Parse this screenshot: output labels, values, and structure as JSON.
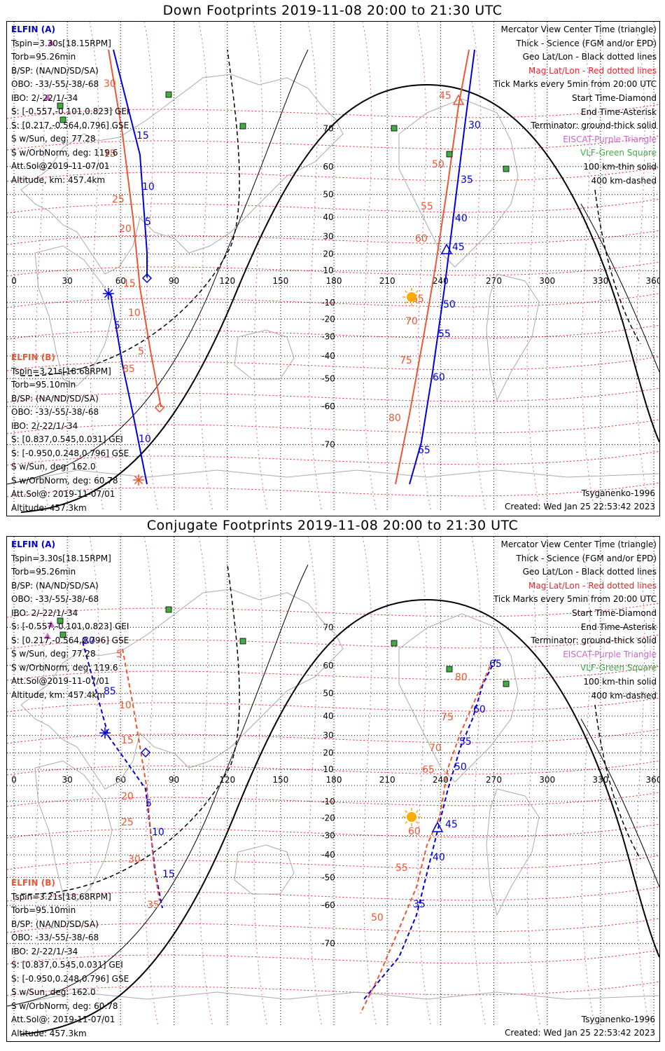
{
  "panels": [
    {
      "title": "Down Footprints 2019-11-08 20:00 to 21:30 UTC",
      "elfin_a": {
        "header": "ELFIN (A)",
        "lines": [
          "Tspin=3.30s[18.15RPM]",
          "Torb=95.26min",
          "B/SP: (NA/ND/SD/SA)",
          "OBO: -33/-55/-38/-68",
          "IBO: 2/-22/1/-34",
          "S: [-0.557,-0.101,0.823] GEI",
          "S: [0.217,-0.564,0.796] GSE",
          "S w/Sun, deg: 77.28",
          "S w/OrbNorm, deg: 119.6",
          "Att.Sol@2019-11-07/01",
          "Altitude, km: 457.4km"
        ]
      },
      "elfin_b": {
        "header": "ELFIN (B)",
        "lines": [
          "Tspin=3.21s[18.68RPM]",
          "Torb=95.10min",
          "B/SP: (NA/ND/SD/SA)",
          "OBO: -33/-55/-38/-68",
          "IBO: 2/-22/1/-34",
          "S: [0.837,0.545,0.031] GEI",
          "S: [-0.950,0.248,0.796] GSE",
          "S w/Sun, deg: 162.0",
          "S w/OrbNorm, deg: 60.78",
          "Att.Sol@: 2019-11-07/01",
          "Altitude: 457.3km"
        ]
      },
      "legend": [
        {
          "text": "Mercator View Center Time (triangle)",
          "color": "#000000"
        },
        {
          "text": "Thick - Science (FGM and/or EPD)",
          "color": "#000000"
        },
        {
          "text": "Geo Lat/Lon - Black dotted lines",
          "color": "#000000"
        },
        {
          "text": "Mag Lat/Lon - Red dotted lines",
          "color": "#ee2222"
        },
        {
          "text": "Tick Marks every 5min from 20:00 UTC",
          "color": "#000000"
        },
        {
          "text": "Start Time-Diamond",
          "color": "#000000"
        },
        {
          "text": "End Time-Asterisk",
          "color": "#000000"
        },
        {
          "text": "Terminator: ground-thick solid",
          "color": "#000000"
        },
        {
          "text": "EISCAT-Purple Triangle",
          "color": "#cc66cc"
        },
        {
          "text": "VLF-Green Square",
          "color": "#44aa44"
        },
        {
          "text": "100 km-thin solid",
          "color": "#000000"
        },
        {
          "text": "400 km-dashed",
          "color": "#000000"
        }
      ],
      "credit_model": "Tsyganenko-1996",
      "credit_created": "Created: Wed Jan 25 22:53:42 2023"
    },
    {
      "title": "Conjugate Footprints 2019-11-08 20:00 to 21:30 UTC",
      "elfin_a": {
        "header": "ELFIN (A)",
        "lines": [
          "Tspin=3.30s[18.15RPM]",
          "Torb=95.26min",
          "B/SP: (NA/ND/SD/SA)",
          "OBO: -33/-55/-38/-68",
          "IBO: 2/-22/1/-34",
          "S: [-0.557,-0.101,0.823] GEI",
          "S: [0.217,-0.564,0.796] GSE",
          "S w/Sun, deg: 77.28",
          "S w/OrbNorm, deg: 119.6",
          "Att.Sol@2019-11-07/01",
          "Altitude, km: 457.4km"
        ]
      },
      "elfin_b": {
        "header": "ELFIN (B)",
        "lines": [
          "Tspin=3.21s[18.68RPM]",
          "Torb=95.10min",
          "B/SP: (NA/ND/SD/SA)",
          "OBO: -33/-55/-38/-68",
          "IBO: 2/-22/1/-34",
          "S: [0.837,0.545,0.031] GEI",
          "S: [-0.950,0.248,0.796] GSE",
          "S w/Sun, deg: 162.0",
          "S w/OrbNorm, deg: 60.78",
          "Att.Sol@: 2019-11-07/01",
          "Altitude: 457.3km"
        ]
      },
      "legend": [
        {
          "text": "Mercator View Center Time (triangle)",
          "color": "#000000"
        },
        {
          "text": "Thick - Science (FGM and/or EPD)",
          "color": "#000000"
        },
        {
          "text": "Geo Lat/Lon - Black dotted lines",
          "color": "#000000"
        },
        {
          "text": "Mag Lat/Lon - Red dotted lines",
          "color": "#ee2222"
        },
        {
          "text": "Tick Marks every 5min from 20:00 UTC",
          "color": "#000000"
        },
        {
          "text": "Start Time-Diamond",
          "color": "#000000"
        },
        {
          "text": "End Time-Asterisk",
          "color": "#000000"
        },
        {
          "text": "Terminator: ground-thick solid",
          "color": "#000000"
        },
        {
          "text": "EISCAT-Purple Triangle",
          "color": "#cc66cc"
        },
        {
          "text": "VLF-Green Square",
          "color": "#44aa44"
        },
        {
          "text": "100 km-thin solid",
          "color": "#000000"
        },
        {
          "text": "400 km-dashed",
          "color": "#000000"
        }
      ],
      "credit_model": "Tsyganenko-1996",
      "credit_created": "Created: Wed Jan 25 22:53:42 2023"
    }
  ],
  "axes": {
    "lon_ticks": [
      "0",
      "30",
      "60",
      "90",
      "120",
      "150",
      "180",
      "210",
      "240",
      "270",
      "300",
      "330",
      "360"
    ],
    "lat_ticks": [
      "70",
      "60",
      "50",
      "40",
      "30",
      "20",
      "10",
      "-10",
      "-20",
      "-30",
      "-40",
      "-50",
      "-60",
      "-70"
    ]
  },
  "colors": {
    "elfin_a": "#0000dd",
    "elfin_b": "#ee5533",
    "geo_grid": "#000000",
    "mag_grid": "#ee2222",
    "coast": "#aaaaaa",
    "vlf": "#44aa44",
    "eiscat": "#cc66cc",
    "sun": "#ffaa00"
  },
  "chart_data": [
    {
      "type": "map",
      "projection": "mercator",
      "xlim": [
        0,
        360
      ],
      "ylim": [
        -80,
        80
      ],
      "series": [
        {
          "name": "ELFIN (A)",
          "style": "solid",
          "tick_labels": [
            "5",
            "10",
            "15",
            "30",
            "35",
            "40",
            "45",
            "50",
            "55",
            "60",
            "65"
          ]
        },
        {
          "name": "ELFIN (B)",
          "style": "solid",
          "tick_labels": [
            "5",
            "10",
            "15",
            "20",
            "25",
            "30",
            "45",
            "50",
            "55",
            "60",
            "65",
            "70",
            "75",
            "80",
            "85"
          ]
        }
      ],
      "vlf_sites": [
        [
          -2,
          60
        ],
        [
          -16,
          52
        ],
        [
          95,
          75
        ],
        [
          136,
          67
        ],
        [
          219,
          61
        ],
        [
          246,
          52
        ],
        [
          281,
          49
        ]
      ]
    },
    {
      "type": "map",
      "projection": "mercator",
      "xlim": [
        0,
        360
      ],
      "ylim": [
        -80,
        80
      ],
      "series": [
        {
          "name": "ELFIN (A)",
          "style": "dashed",
          "tick_labels": [
            "5",
            "10",
            "15",
            "35",
            "40",
            "45",
            "50",
            "55",
            "60",
            "65",
            "80",
            "85"
          ]
        },
        {
          "name": "ELFIN (B)",
          "style": "dashed",
          "tick_labels": [
            "5",
            "10",
            "15",
            "20",
            "25",
            "30",
            "35",
            "50",
            "55",
            "60",
            "65",
            "70",
            "75",
            "80"
          ]
        }
      ],
      "vlf_sites": [
        [
          -2,
          60
        ],
        [
          -16,
          52
        ],
        [
          95,
          75
        ],
        [
          136,
          67
        ],
        [
          219,
          61
        ],
        [
          246,
          52
        ],
        [
          281,
          49
        ]
      ]
    }
  ]
}
